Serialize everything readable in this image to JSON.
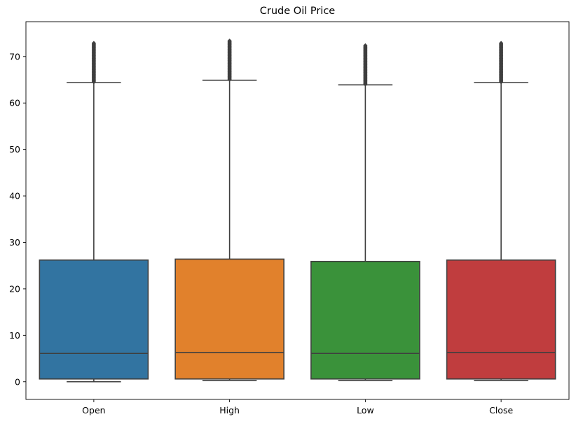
{
  "chart_data": {
    "type": "box",
    "title": "Crude Oil Price",
    "xlabel": "",
    "ylabel": "",
    "categories": [
      "Open",
      "High",
      "Low",
      "Close"
    ],
    "ylim": [
      -3.8,
      77.5
    ],
    "yticks": [
      0,
      10,
      20,
      30,
      40,
      50,
      60,
      70
    ],
    "grid": false,
    "legend": "none",
    "boxes": [
      {
        "name": "Open",
        "whisker_low": 0.0,
        "q1": 0.6,
        "median": 6.1,
        "q3": 26.2,
        "whisker_high": 64.4,
        "outlier_high_max": 72.9,
        "color": "#3274a1"
      },
      {
        "name": "High",
        "whisker_low": 0.3,
        "q1": 0.6,
        "median": 6.3,
        "q3": 26.4,
        "whisker_high": 64.9,
        "outlier_high_max": 73.4,
        "color": "#e1812c"
      },
      {
        "name": "Low",
        "whisker_low": 0.3,
        "q1": 0.6,
        "median": 6.1,
        "q3": 25.9,
        "whisker_high": 63.9,
        "outlier_high_max": 72.5,
        "color": "#3a923a"
      },
      {
        "name": "Close",
        "whisker_low": 0.3,
        "q1": 0.6,
        "median": 6.3,
        "q3": 26.2,
        "whisker_high": 64.4,
        "outlier_high_max": 72.9,
        "color": "#c03d3e"
      }
    ]
  }
}
